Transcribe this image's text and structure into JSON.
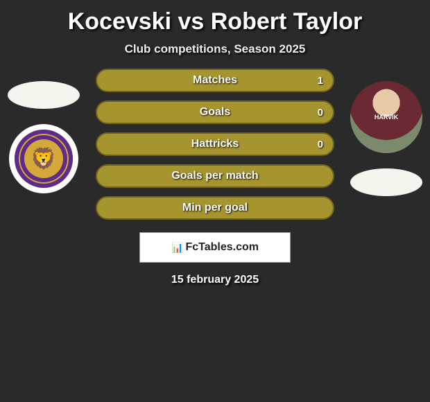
{
  "title": "Kocevski vs Robert Taylor",
  "subtitle": "Club competitions, Season 2025",
  "date": "15 february 2025",
  "logo_text": "FcTables.com",
  "left_player": {
    "badge_text": "🦁",
    "badge_bg": "#5e2b8a",
    "badge_accent": "#d4a93a"
  },
  "right_player": {
    "shirt_text": "HARVIK"
  },
  "bars": [
    {
      "label": "Matches",
      "value_right": "1",
      "color": "#a6952f",
      "border": "#6f651f"
    },
    {
      "label": "Goals",
      "value_right": "0",
      "color": "#a6952f",
      "border": "#6f651f"
    },
    {
      "label": "Hattricks",
      "value_right": "0",
      "color": "#a6952f",
      "border": "#6f651f"
    },
    {
      "label": "Goals per match",
      "value_right": "",
      "color": "#a6952f",
      "border": "#6f651f"
    },
    {
      "label": "Min per goal",
      "value_right": "",
      "color": "#a6952f",
      "border": "#6f651f"
    }
  ],
  "colors": {
    "page_bg": "#2a2a2a",
    "text": "#ffffff",
    "logo_bg": "#ffffff",
    "logo_text": "#222222"
  }
}
